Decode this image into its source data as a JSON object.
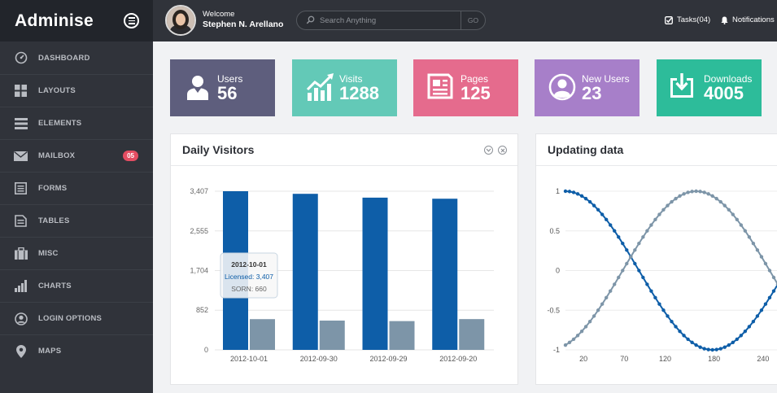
{
  "app": {
    "logo": "Adminise"
  },
  "colors": {
    "sidebar": "#30333a",
    "accent_blue": "#0e5ea8",
    "grey_series": "#7d95a8",
    "badge": "#e44d62"
  },
  "sidebar": {
    "items": [
      {
        "label": "DASHBOARD",
        "icon": "dashboard-icon"
      },
      {
        "label": "LAYOUTS",
        "icon": "grid-icon"
      },
      {
        "label": "ELEMENTS",
        "icon": "list-icon"
      },
      {
        "label": "MAILBOX",
        "icon": "envelope-icon",
        "badge": "05"
      },
      {
        "label": "FORMS",
        "icon": "form-icon"
      },
      {
        "label": "TABLES",
        "icon": "table-icon"
      },
      {
        "label": "MISC",
        "icon": "briefcase-icon"
      },
      {
        "label": "CHARTS",
        "icon": "bar-chart-icon"
      },
      {
        "label": "LOGIN OPTIONS",
        "icon": "user-circle-icon"
      },
      {
        "label": "MAPS",
        "icon": "map-pin-icon"
      }
    ]
  },
  "header": {
    "welcome": "Welcome",
    "user_name": "Stephen N. Arellano",
    "search_placeholder": "Search Anything",
    "search_button": "GO",
    "tasks": "Tasks(04)",
    "notifications": "Notifications"
  },
  "tiles": [
    {
      "label": "Users",
      "value": "56",
      "color": "#5e5e7d",
      "icon": "user-icon"
    },
    {
      "label": "Visits",
      "value": "1288",
      "color": "#63c9b7",
      "icon": "trend-chart-icon"
    },
    {
      "label": "Pages",
      "value": "125",
      "color": "#e56b8d",
      "icon": "document-icon"
    },
    {
      "label": "New Users",
      "value": "23",
      "color": "#a77fc9",
      "icon": "user-circle-icon"
    },
    {
      "label": "Downloads",
      "value": "4005",
      "color": "#2dbc9a",
      "icon": "download-icon"
    }
  ],
  "panels": {
    "visitors": {
      "title": "Daily Visitors"
    },
    "updating": {
      "title": "Updating data"
    }
  },
  "chart_data": [
    {
      "type": "bar",
      "categories": [
        "2012-10-01",
        "2012-09-30",
        "2012-09-29",
        "2012-09-20"
      ],
      "series": [
        {
          "name": "Licensed",
          "values": [
            3407,
            3351,
            3269,
            3246
          ]
        },
        {
          "name": "SORN",
          "values": [
            660,
            629,
            618,
            661
          ]
        }
      ],
      "ylim": [
        0,
        3407
      ],
      "y_ticks": [
        "0",
        "852",
        "1,704",
        "2,555",
        "3,407"
      ],
      "y_tick_values": [
        0,
        852,
        1704,
        2555,
        3407
      ],
      "tooltip": {
        "title": "2012-10-01",
        "line1": "Licensed: 3,407",
        "line2": "SORN: 660"
      }
    },
    {
      "type": "line",
      "x_ticks": [
        "20",
        "70",
        "120",
        "180",
        "240"
      ],
      "x_tick_values": [
        20,
        70,
        120,
        180,
        240
      ],
      "y_ticks": [
        "1",
        "0.5",
        "0",
        "-0.5",
        "-1"
      ],
      "y_tick_values": [
        1,
        0.5,
        0,
        -0.5,
        -1
      ],
      "xlim": [
        0,
        260
      ],
      "ylim": [
        -1,
        1
      ],
      "series": [
        {
          "shape": "cosine",
          "x_step": 5,
          "x_start": 0,
          "x_end": 260,
          "amplitude": 1,
          "period": 360,
          "phase": 0
        },
        {
          "shape": "sine-neg",
          "x_step": 5,
          "x_start": 0,
          "x_end": 260,
          "amplitude": 1,
          "period": 360,
          "phase": 200
        }
      ]
    }
  ]
}
